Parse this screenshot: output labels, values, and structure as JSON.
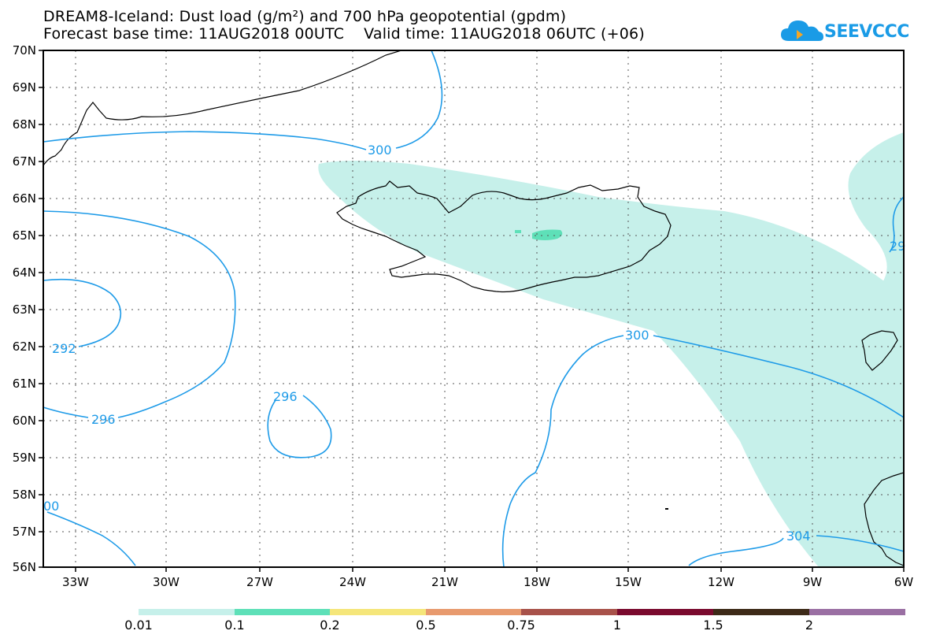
{
  "header": {
    "title_line1": "DREAM8-Iceland: Dust load (g/m²) and 700 hPa geopotential (gpdm)",
    "title_line2": "Forecast base time: 11AUG2018 00UTC    Valid time: 11AUG2018 06UTC (+06)",
    "logo_text": "SEEVCCC"
  },
  "map": {
    "lat_labels": [
      "70N",
      "69N",
      "68N",
      "67N",
      "66N",
      "65N",
      "64N",
      "63N",
      "62N",
      "61N",
      "60N",
      "59N",
      "58N",
      "57N",
      "56N"
    ],
    "lon_labels": [
      "33W",
      "30W",
      "27W",
      "24W",
      "21W",
      "18W",
      "15W",
      "12W",
      "9W",
      "6W"
    ],
    "contour_labels": [
      "300",
      "300",
      "292",
      "296",
      "296",
      "304",
      "00",
      "29"
    ],
    "colors": {
      "contour": "#1e9be8",
      "coast": "#000000",
      "dust_low": "#c6f0ea",
      "dust_mid": "#5ee0b8"
    }
  },
  "colorbar": {
    "labels": [
      "0.01",
      "0.1",
      "0.2",
      "0.5",
      "0.75",
      "1",
      "1.5",
      "2"
    ],
    "colors": [
      "#c6f0ea",
      "#5ee0b8",
      "#f5e67a",
      "#e89a6e",
      "#a8524a",
      "#7a0a2e",
      "#3d2a18",
      "#9a6fa3"
    ]
  }
}
